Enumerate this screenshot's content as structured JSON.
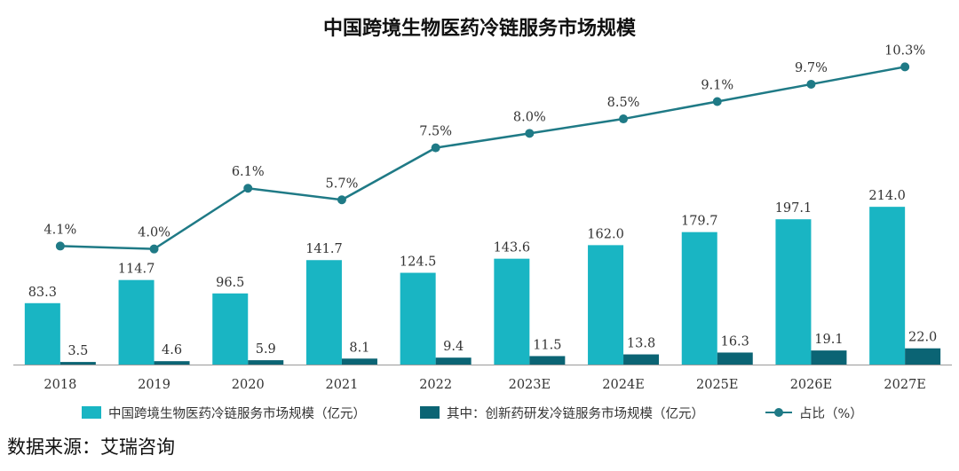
{
  "chart_data": {
    "type": "bar",
    "title": "中国跨境生物医药冷链服务市场规模",
    "categories": [
      "2018",
      "2019",
      "2020",
      "2021",
      "2022",
      "2023E",
      "2024E",
      "2025E",
      "2026E",
      "2027E"
    ],
    "series": [
      {
        "name": "中国跨境生物医药冷链服务市场规模（亿元）",
        "type": "bar",
        "color": "#19b5c3",
        "values": [
          83.3,
          114.7,
          96.5,
          141.7,
          124.5,
          143.6,
          162.0,
          179.7,
          197.1,
          214.0
        ],
        "labels": [
          "83.3",
          "114.7",
          "96.5",
          "141.7",
          "124.5",
          "143.6",
          "162.0",
          "179.7",
          "197.1",
          "214.0"
        ]
      },
      {
        "name": "其中：创新药研发冷链服务市场规模（亿元）",
        "type": "bar",
        "color": "#0b6474",
        "values": [
          3.5,
          4.6,
          5.9,
          8.1,
          9.4,
          11.5,
          13.8,
          16.3,
          19.1,
          22.0
        ],
        "labels": [
          "3.5",
          "4.6",
          "5.9",
          "8.1",
          "9.4",
          "11.5",
          "13.8",
          "16.3",
          "19.1",
          "22.0"
        ]
      },
      {
        "name": "占比（%）",
        "type": "line",
        "color": "#1f7a86",
        "values": [
          4.1,
          4.0,
          6.1,
          5.7,
          7.5,
          8.0,
          8.5,
          9.1,
          9.7,
          10.3
        ],
        "labels": [
          "4.1%",
          "4.0%",
          "6.1%",
          "5.7%",
          "7.5%",
          "8.0%",
          "8.5%",
          "9.1%",
          "9.7%",
          "10.3%"
        ]
      }
    ],
    "ylim_bar": [
      0,
      290
    ],
    "ylim_line": [
      0,
      12
    ],
    "legend_position": "bottom"
  },
  "source": "数据来源：艾瑞咨询"
}
